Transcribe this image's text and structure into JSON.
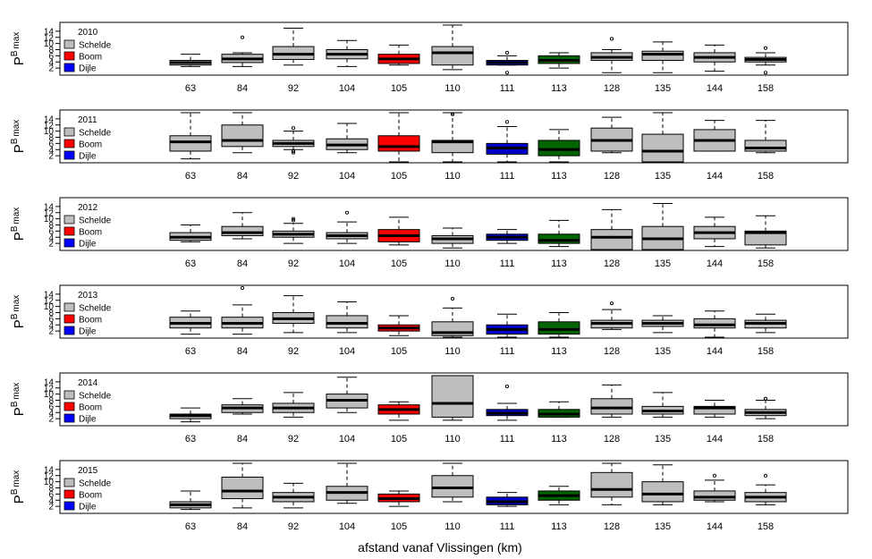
{
  "chart_data": {
    "type": "box",
    "x_axis_label": "afstand vanaf Vlissingen (km)",
    "y_axis_label": {
      "base": "P",
      "sup": "B",
      "sub": "max"
    },
    "categories": [
      "63",
      "84",
      "92",
      "104",
      "105",
      "110",
      "111",
      "113",
      "128",
      "135",
      "144",
      "158"
    ],
    "y_ticks": [
      2,
      4,
      6,
      8,
      10,
      12,
      14
    ],
    "y_range": [
      0,
      16
    ],
    "legend": [
      {
        "label": "Schelde",
        "color": "#bebebe"
      },
      {
        "label": "Boom",
        "color": "#ff0000"
      },
      {
        "label": "Dijle",
        "color": "#0000ff"
      }
    ],
    "box_colors": [
      "#bebebe",
      "#bebebe",
      "#bebebe",
      "#bebebe",
      "#ff0000",
      "#bebebe",
      "#0000cd",
      "#006400",
      "#bebebe",
      "#bebebe",
      "#bebebe",
      "#bebebe"
    ],
    "panels": [
      {
        "year": "2010",
        "boxes": [
          {
            "wlo": 2.5,
            "q1": 3.0,
            "med": 3.8,
            "q3": 4.5,
            "whi": 6.5,
            "out": []
          },
          {
            "wlo": 2.5,
            "q1": 3.8,
            "med": 5.0,
            "q3": 6.5,
            "whi": 7.0,
            "out": [
              12
            ]
          },
          {
            "wlo": 3.0,
            "q1": 4.8,
            "med": 6.5,
            "q3": 9.0,
            "whi": 15.0,
            "out": []
          },
          {
            "wlo": 2.5,
            "q1": 5.0,
            "med": 6.5,
            "q3": 8.0,
            "whi": 11.0,
            "out": []
          },
          {
            "wlo": 3.0,
            "q1": 3.5,
            "med": 5.0,
            "q3": 6.5,
            "whi": 9.5,
            "out": []
          },
          {
            "wlo": 1.5,
            "q1": 3.0,
            "med": 7.0,
            "q3": 9.0,
            "whi": 16.5,
            "out": []
          },
          {
            "wlo": 3.0,
            "q1": 3.0,
            "med": 3.8,
            "q3": 4.5,
            "whi": 6.0,
            "out": [
              7,
              0.5
            ]
          },
          {
            "wlo": 2.0,
            "q1": 3.5,
            "med": 4.5,
            "q3": 6.0,
            "whi": 7.0,
            "out": []
          },
          {
            "wlo": 0.5,
            "q1": 4.5,
            "med": 5.5,
            "q3": 7.0,
            "whi": 8.0,
            "out": [
              11.5
            ]
          },
          {
            "wlo": 0.5,
            "q1": 4.5,
            "med": 6.5,
            "q3": 7.5,
            "whi": 10.5,
            "out": []
          },
          {
            "wlo": 1.0,
            "q1": 4.0,
            "med": 5.5,
            "q3": 7.0,
            "whi": 9.5,
            "out": []
          },
          {
            "wlo": 3.0,
            "q1": 4.0,
            "med": 4.8,
            "q3": 5.5,
            "whi": 7.0,
            "out": [
              8.5,
              0.5
            ]
          }
        ]
      },
      {
        "year": "2011",
        "boxes": [
          {
            "wlo": 1.0,
            "q1": 3.5,
            "med": 6.5,
            "q3": 8.5,
            "whi": 16.5,
            "out": []
          },
          {
            "wlo": 3.0,
            "q1": 5.0,
            "med": 7.0,
            "q3": 12.0,
            "whi": 16.5,
            "out": []
          },
          {
            "wlo": 4.0,
            "q1": 5.0,
            "med": 6.0,
            "q3": 7.0,
            "whi": 10.0,
            "out": [
              11,
              3.5,
              3.0
            ]
          },
          {
            "wlo": 3.0,
            "q1": 4.0,
            "med": 5.5,
            "q3": 7.5,
            "whi": 12.5,
            "out": []
          },
          {
            "wlo": 0.0,
            "q1": 3.5,
            "med": 5.0,
            "q3": 8.5,
            "whi": 16.5,
            "out": []
          },
          {
            "wlo": 0.0,
            "q1": 3.0,
            "med": 6.5,
            "q3": 7.0,
            "whi": 16.5,
            "out": [
              15.5
            ]
          },
          {
            "wlo": 0.0,
            "q1": 2.5,
            "med": 4.5,
            "q3": 6.0,
            "whi": 11.5,
            "out": [
              13
            ]
          },
          {
            "wlo": -0.5,
            "q1": 2.0,
            "med": 4.0,
            "q3": 7.0,
            "whi": 10.5,
            "out": []
          },
          {
            "wlo": 3.0,
            "q1": 3.5,
            "med": 7.0,
            "q3": 11.0,
            "whi": 14.5,
            "out": []
          },
          {
            "wlo": -0.5,
            "q1": -0.5,
            "med": 3.5,
            "q3": 9.0,
            "whi": 16.5,
            "out": []
          },
          {
            "wlo": 3.5,
            "q1": 3.5,
            "med": 7.0,
            "q3": 10.5,
            "whi": 13.5,
            "out": []
          },
          {
            "wlo": 3.0,
            "q1": 3.5,
            "med": 4.5,
            "q3": 7.0,
            "whi": 13.5,
            "out": []
          }
        ]
      },
      {
        "year": "2012",
        "boxes": [
          {
            "wlo": 2.5,
            "q1": 3.0,
            "med": 4.0,
            "q3": 5.5,
            "whi": 8.0,
            "out": []
          },
          {
            "wlo": 3.5,
            "q1": 4.5,
            "med": 5.5,
            "q3": 7.5,
            "whi": 12.0,
            "out": []
          },
          {
            "wlo": 2.0,
            "q1": 4.0,
            "med": 5.0,
            "q3": 6.0,
            "whi": 8.5,
            "out": [
              9.5,
              10
            ]
          },
          {
            "wlo": 2.0,
            "q1": 3.5,
            "med": 4.5,
            "q3": 5.5,
            "whi": 9.0,
            "out": [
              12
            ]
          },
          {
            "wlo": 1.5,
            "q1": 2.5,
            "med": 4.5,
            "q3": 6.5,
            "whi": 10.5,
            "out": []
          },
          {
            "wlo": 0.5,
            "q1": 2.0,
            "med": 3.5,
            "q3": 4.5,
            "whi": 7.0,
            "out": []
          },
          {
            "wlo": 2.0,
            "q1": 3.0,
            "med": 4.0,
            "q3": 5.0,
            "whi": 6.5,
            "out": []
          },
          {
            "wlo": 1.0,
            "q1": 2.0,
            "med": 3.0,
            "q3": 5.0,
            "whi": 9.5,
            "out": []
          },
          {
            "wlo": 0.0,
            "q1": 0.0,
            "med": 4.0,
            "q3": 6.5,
            "whi": 13.0,
            "out": []
          },
          {
            "wlo": 0.0,
            "q1": 0.0,
            "med": 3.5,
            "q3": 7.5,
            "whi": 15.0,
            "out": []
          },
          {
            "wlo": 1.0,
            "q1": 3.5,
            "med": 5.5,
            "q3": 7.5,
            "whi": 10.5,
            "out": []
          },
          {
            "wlo": 0.5,
            "q1": 1.5,
            "med": 5.5,
            "q3": 6.0,
            "whi": 11.0,
            "out": []
          }
        ]
      },
      {
        "year": "2013",
        "boxes": [
          {
            "wlo": 1.0,
            "q1": 3.0,
            "med": 4.5,
            "q3": 6.5,
            "whi": 8.5,
            "out": []
          },
          {
            "wlo": 1.0,
            "q1": 3.0,
            "med": 4.5,
            "q3": 6.5,
            "whi": 10.5,
            "out": [
              16
            ]
          },
          {
            "wlo": 1.5,
            "q1": 4.5,
            "med": 6.0,
            "q3": 8.0,
            "whi": 13.5,
            "out": []
          },
          {
            "wlo": 1.5,
            "q1": 3.0,
            "med": 4.5,
            "q3": 7.0,
            "whi": 11.5,
            "out": []
          },
          {
            "wlo": 0.5,
            "q1": 2.0,
            "med": 3.0,
            "q3": 4.0,
            "whi": 7.0,
            "out": []
          },
          {
            "wlo": 0.0,
            "q1": 0.5,
            "med": 1.5,
            "q3": 5.0,
            "whi": 9.5,
            "out": [
              12.5
            ]
          },
          {
            "wlo": 0.0,
            "q1": 1.0,
            "med": 2.5,
            "q3": 4.0,
            "whi": 7.5,
            "out": []
          },
          {
            "wlo": -0.5,
            "q1": 1.0,
            "med": 2.5,
            "q3": 5.0,
            "whi": 8.0,
            "out": []
          },
          {
            "wlo": 2.5,
            "q1": 3.0,
            "med": 4.5,
            "q3": 5.5,
            "whi": 9.0,
            "out": [
              11
            ]
          },
          {
            "wlo": 1.5,
            "q1": 3.5,
            "med": 4.5,
            "q3": 5.5,
            "whi": 7.0,
            "out": []
          },
          {
            "wlo": -0.5,
            "q1": 3.0,
            "med": 4.0,
            "q3": 6.0,
            "whi": 8.5,
            "out": []
          },
          {
            "wlo": 1.5,
            "q1": 3.0,
            "med": 4.5,
            "q3": 5.5,
            "whi": 7.5,
            "out": []
          }
        ]
      },
      {
        "year": "2014",
        "boxes": [
          {
            "wlo": 1.0,
            "q1": 2.0,
            "med": 3.0,
            "q3": 3.5,
            "whi": 5.5,
            "out": []
          },
          {
            "wlo": 3.5,
            "q1": 4.0,
            "med": 5.5,
            "q3": 6.5,
            "whi": 8.5,
            "out": []
          },
          {
            "wlo": 2.5,
            "q1": 4.0,
            "med": 5.5,
            "q3": 7.0,
            "whi": 10.5,
            "out": []
          },
          {
            "wlo": 4.0,
            "q1": 5.5,
            "med": 8.0,
            "q3": 10.0,
            "whi": 15.5,
            "out": []
          },
          {
            "wlo": 1.5,
            "q1": 3.5,
            "med": 5.0,
            "q3": 6.5,
            "whi": 7.5,
            "out": []
          },
          {
            "wlo": 1.5,
            "q1": 2.5,
            "med": 7.0,
            "q3": 16.5,
            "whi": 16.5,
            "out": []
          },
          {
            "wlo": 1.5,
            "q1": 3.0,
            "med": 3.8,
            "q3": 5.0,
            "whi": 7.0,
            "out": [
              12.5
            ]
          },
          {
            "wlo": 2.5,
            "q1": 2.5,
            "med": 3.5,
            "q3": 5.0,
            "whi": 7.5,
            "out": []
          },
          {
            "wlo": 2.5,
            "q1": 3.5,
            "med": 5.5,
            "q3": 8.5,
            "whi": 13.0,
            "out": []
          },
          {
            "wlo": 2.5,
            "q1": 3.5,
            "med": 4.5,
            "q3": 6.0,
            "whi": 10.5,
            "out": []
          },
          {
            "wlo": 2.5,
            "q1": 3.5,
            "med": 5.5,
            "q3": 6.0,
            "whi": 8.0,
            "out": []
          },
          {
            "wlo": 2.0,
            "q1": 3.0,
            "med": 4.0,
            "q3": 5.0,
            "whi": 8.0,
            "out": [
              8.5
            ]
          }
        ]
      },
      {
        "year": "2015",
        "boxes": [
          {
            "wlo": 1.0,
            "q1": 1.5,
            "med": 2.5,
            "q3": 3.5,
            "whi": 7.0,
            "out": []
          },
          {
            "wlo": 1.5,
            "q1": 4.5,
            "med": 7.0,
            "q3": 11.5,
            "whi": 16.5,
            "out": []
          },
          {
            "wlo": 1.5,
            "q1": 3.5,
            "med": 5.0,
            "q3": 6.5,
            "whi": 9.5,
            "out": []
          },
          {
            "wlo": 3.0,
            "q1": 4.0,
            "med": 6.5,
            "q3": 8.5,
            "whi": 16.5,
            "out": []
          },
          {
            "wlo": 2.0,
            "q1": 3.5,
            "med": 4.5,
            "q3": 6.0,
            "whi": 7.0,
            "out": []
          },
          {
            "wlo": 3.5,
            "q1": 5.0,
            "med": 8.0,
            "q3": 12.0,
            "whi": 16.5,
            "out": []
          },
          {
            "wlo": 2.0,
            "q1": 2.5,
            "med": 3.5,
            "q3": 5.0,
            "whi": 6.5,
            "out": []
          },
          {
            "wlo": 2.5,
            "q1": 4.0,
            "med": 5.5,
            "q3": 7.0,
            "whi": 8.5,
            "out": []
          },
          {
            "wlo": 2.5,
            "q1": 5.0,
            "med": 7.5,
            "q3": 13.0,
            "whi": 16.5,
            "out": []
          },
          {
            "wlo": 2.5,
            "q1": 3.5,
            "med": 6.0,
            "q3": 10.0,
            "whi": 15.5,
            "out": []
          },
          {
            "wlo": 3.5,
            "q1": 4.0,
            "med": 5.0,
            "q3": 7.0,
            "whi": 10.5,
            "out": [
              12
            ]
          },
          {
            "wlo": 2.5,
            "q1": 3.5,
            "med": 5.0,
            "q3": 6.5,
            "whi": 9.0,
            "out": [
              12
            ]
          }
        ]
      }
    ]
  }
}
